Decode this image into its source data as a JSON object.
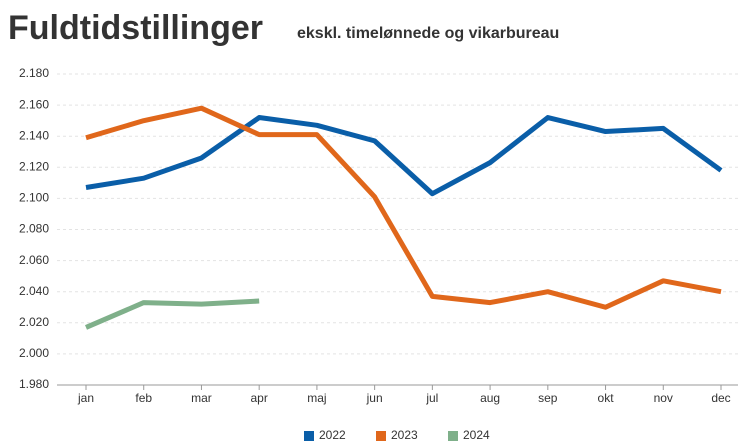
{
  "chart_data": {
    "type": "line",
    "title": "Fuldtidstillinger",
    "subtitle": "ekskl. timelønnede og vikarbureau",
    "categories": [
      "jan",
      "feb",
      "mar",
      "apr",
      "maj",
      "jun",
      "jul",
      "aug",
      "sep",
      "okt",
      "nov",
      "dec"
    ],
    "series": [
      {
        "name": "2022",
        "color": "#0a5ea8",
        "values": [
          2107,
          2113,
          2126,
          2152,
          2147,
          2137,
          2103,
          2123,
          2152,
          2143,
          2145,
          2118
        ]
      },
      {
        "name": "2023",
        "color": "#e0671b",
        "values": [
          2139,
          2150,
          2158,
          2141,
          2141,
          2101,
          2037,
          2033,
          2040,
          2030,
          2047,
          2040
        ]
      },
      {
        "name": "2024",
        "color": "#7fb08a",
        "values": [
          2017,
          2033,
          2032,
          2034,
          null,
          null,
          null,
          null,
          null,
          null,
          null,
          null
        ]
      }
    ],
    "ylim": [
      1980,
      2180
    ],
    "yticks": [
      {
        "value": 1980,
        "label": "1.980"
      },
      {
        "value": 2000,
        "label": "2.000"
      },
      {
        "value": 2020,
        "label": "2.020"
      },
      {
        "value": 2040,
        "label": "2.040"
      },
      {
        "value": 2060,
        "label": "2.060"
      },
      {
        "value": 2080,
        "label": "2.080"
      },
      {
        "value": 2100,
        "label": "2.100"
      },
      {
        "value": 2120,
        "label": "2.120"
      },
      {
        "value": 2140,
        "label": "2.140"
      },
      {
        "value": 2160,
        "label": "2.160"
      },
      {
        "value": 2180,
        "label": "2.180"
      }
    ],
    "grid": true,
    "legend": "bottom"
  }
}
